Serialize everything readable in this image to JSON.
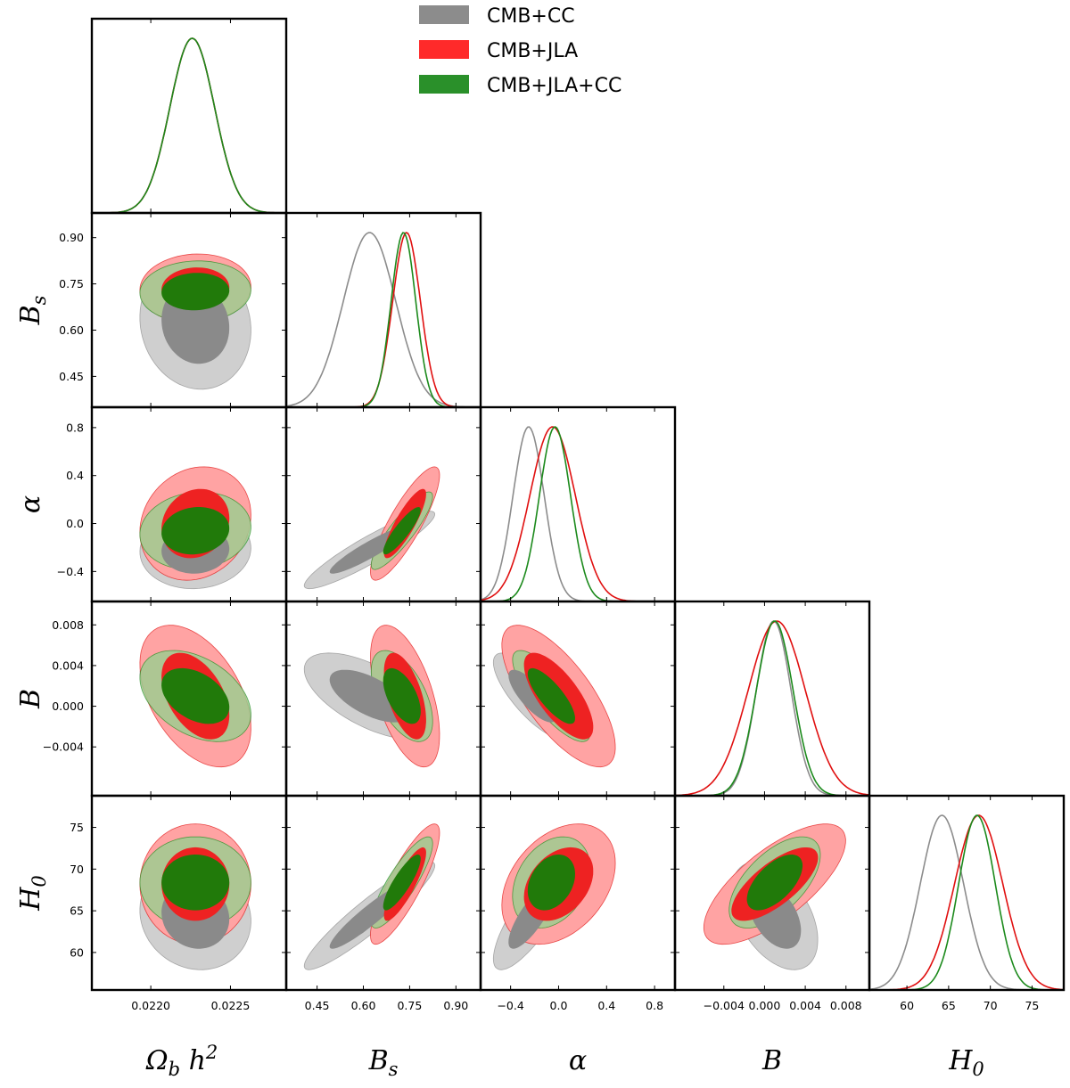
{
  "chart_data": {
    "type": "triangle",
    "title": "",
    "parameters": [
      {
        "key": "omb",
        "label_main": "Ω",
        "label_sub": "b",
        "label_tail": " h",
        "label_sup": "2",
        "ticks": [
          0.022,
          0.0225
        ],
        "tick_labels": [
          "0.0220",
          "0.0225"
        ],
        "range": [
          0.02163,
          0.02285
        ]
      },
      {
        "key": "bs",
        "label_main": "B",
        "label_sub": "s",
        "label_tail": "",
        "label_sup": "",
        "ticks": [
          0.45,
          0.6,
          0.75,
          0.9
        ],
        "tick_labels": [
          "0.45",
          "0.60",
          "0.75",
          "0.90"
        ],
        "range": [
          0.35,
          0.98
        ]
      },
      {
        "key": "alpha",
        "label_main": "α",
        "label_sub": "",
        "label_tail": "",
        "label_sup": "",
        "ticks": [
          -0.4,
          0.0,
          0.4,
          0.8
        ],
        "tick_labels": [
          "−0.4",
          "0.0",
          "0.4",
          "0.8"
        ],
        "range": [
          -0.65,
          0.97
        ]
      },
      {
        "key": "b",
        "label_main": "B",
        "label_sub": "",
        "label_tail": "",
        "label_sup": "",
        "ticks": [
          -0.004,
          0.0,
          0.004,
          0.008
        ],
        "tick_labels": [
          "−0.004",
          "0.000",
          "0.004",
          "0.008"
        ],
        "range": [
          -0.0088,
          0.0103
        ]
      },
      {
        "key": "h0",
        "label_main": "H",
        "label_sub": "0",
        "label_tail": "",
        "label_sup": "",
        "ticks": [
          60,
          65,
          70,
          75
        ],
        "tick_labels": [
          "60",
          "65",
          "70",
          "75"
        ],
        "range": [
          55.5,
          78.8
        ]
      }
    ],
    "legend": {
      "position": "top-center",
      "entries": [
        {
          "name": "CMB+CC",
          "color": "#8c8c8c"
        },
        {
          "name": "CMB+JLA",
          "color": "#ff2a2a"
        },
        {
          "name": "CMB+JLA+CC",
          "color": "#2a902a"
        }
      ]
    },
    "series": [
      {
        "name": "CMB+CC",
        "line_color": "#8c8c8c",
        "fill_inner": "#8a8a8a",
        "fill_outer": "#cfcfcf",
        "mean": [
          0.02228,
          0.62,
          -0.22,
          0.001,
          64.4
        ],
        "sigma": [
          0.00014,
          0.085,
          0.13,
          0.0017,
          2.6
        ],
        "corr": [
          [
            1,
            -0.1,
            0.05,
            -0.5,
            -0.1
          ],
          [
            -0.1,
            1,
            0.92,
            -0.62,
            0.93
          ],
          [
            0.05,
            0.92,
            1,
            -0.78,
            0.8
          ],
          [
            -0.5,
            -0.62,
            -0.78,
            1,
            -0.45
          ],
          [
            -0.1,
            0.93,
            0.8,
            -0.45,
            1
          ]
        ],
        "peaks": [
          0.02226,
          0.62,
          -0.25,
          0.0009,
          64.2
        ]
      },
      {
        "name": "CMB+JLA",
        "line_color": "#e01010",
        "fill_inner": "#ee2222",
        "fill_outer": "#ffa3a3",
        "mean": [
          0.02228,
          0.735,
          0.0,
          0.001,
          68.2
        ],
        "sigma": [
          0.00014,
          0.045,
          0.19,
          0.0028,
          2.9
        ],
        "corr": [
          [
            1,
            0.05,
            0.15,
            -0.45,
            0.0
          ],
          [
            0.05,
            1,
            0.85,
            -0.55,
            0.85
          ],
          [
            0.15,
            0.85,
            1,
            -0.72,
            0.35
          ],
          [
            -0.45,
            -0.55,
            -0.72,
            1,
            0.72
          ],
          [
            0.0,
            0.85,
            0.35,
            0.72,
            1
          ]
        ],
        "peaks": [
          0.02226,
          0.74,
          -0.05,
          0.0012,
          68.6
        ]
      },
      {
        "name": "CMB+JLA+CC",
        "line_color": "#1c8a1c",
        "fill_inner": "#217a0a",
        "fill_outer": "#9fcc90",
        "mean": [
          0.02228,
          0.725,
          -0.06,
          0.001,
          68.4
        ],
        "sigma": [
          0.00014,
          0.04,
          0.13,
          0.0018,
          2.2
        ],
        "corr": [
          [
            1,
            0.05,
            0.1,
            -0.4,
            0.0
          ],
          [
            0.05,
            1,
            0.88,
            -0.55,
            0.85
          ],
          [
            0.1,
            0.88,
            1,
            -0.8,
            0.3
          ],
          [
            -0.4,
            -0.55,
            -0.8,
            1,
            0.6
          ],
          [
            0.0,
            0.85,
            0.3,
            0.6,
            1
          ]
        ],
        "peaks": [
          0.02226,
          0.73,
          -0.03,
          0.001,
          68.4
        ]
      }
    ]
  }
}
